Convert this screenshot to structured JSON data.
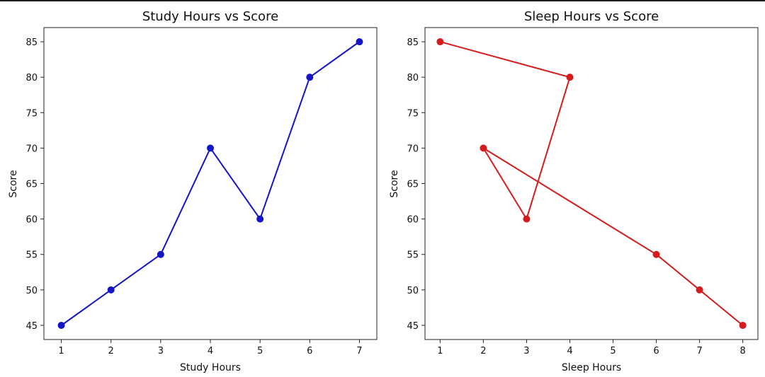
{
  "chart_data": [
    {
      "type": "line",
      "title": "Study Hours vs Score",
      "xlabel": "Study Hours",
      "ylabel": "Score",
      "xlim": [
        0.65,
        7.35
      ],
      "ylim": [
        43,
        87
      ],
      "xticks": [
        1,
        2,
        3,
        4,
        5,
        6,
        7
      ],
      "yticks": [
        45,
        50,
        55,
        60,
        65,
        70,
        75,
        80,
        85
      ],
      "grid": false,
      "series": [
        {
          "color": "#1414c8",
          "marker": "circle",
          "x": [
            1,
            2,
            3,
            4,
            5,
            6,
            7
          ],
          "y": [
            45,
            50,
            55,
            70,
            60,
            80,
            85
          ]
        }
      ]
    },
    {
      "type": "line",
      "title": "Sleep Hours vs Score",
      "xlabel": "Sleep Hours",
      "ylabel": "Score",
      "xlim": [
        0.65,
        8.35
      ],
      "ylim": [
        43,
        87
      ],
      "xticks": [
        1,
        2,
        3,
        4,
        5,
        6,
        7,
        8
      ],
      "yticks": [
        45,
        50,
        55,
        60,
        65,
        70,
        75,
        80,
        85
      ],
      "grid": false,
      "series": [
        {
          "color": "#d41c1c",
          "marker": "circle",
          "x": [
            1,
            4,
            3,
            2,
            6,
            7,
            8
          ],
          "y": [
            85,
            80,
            60,
            70,
            55,
            50,
            45
          ]
        }
      ]
    }
  ]
}
